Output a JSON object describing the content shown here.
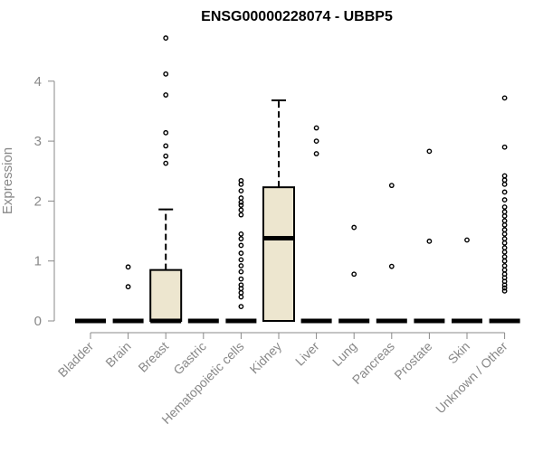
{
  "chart_data": {
    "type": "boxplot",
    "title": "ENSG00000228074 - UBBP5",
    "xlabel": "",
    "ylabel": "Expression",
    "ylim": [
      0,
      4.75
    ],
    "yticks": [
      0,
      1,
      2,
      3,
      4
    ],
    "grid": false,
    "box_fill": "#ede6cf",
    "categories": [
      "Bladder",
      "Brain",
      "Breast",
      "Gastric",
      "Hematopoietic cells",
      "Kidney",
      "Liver",
      "Lung",
      "Pancreas",
      "Prostate",
      "Skin",
      "Unknown / Other"
    ],
    "series": [
      {
        "category": "Bladder",
        "q1": 0,
        "median": 0,
        "q3": 0,
        "whisker_low": 0,
        "whisker_high": 0,
        "outliers": []
      },
      {
        "category": "Brain",
        "q1": 0,
        "median": 0,
        "q3": 0,
        "whisker_low": 0,
        "whisker_high": 0,
        "outliers": [
          0.57,
          0.9
        ]
      },
      {
        "category": "Breast",
        "q1": 0,
        "median": 0,
        "q3": 0.85,
        "whisker_low": 0,
        "whisker_high": 1.86,
        "outliers": [
          2.63,
          2.75,
          2.92,
          3.14,
          3.77,
          4.12,
          4.72
        ]
      },
      {
        "category": "Gastric",
        "q1": 0,
        "median": 0,
        "q3": 0,
        "whisker_low": 0,
        "whisker_high": 0,
        "outliers": []
      },
      {
        "category": "Hematopoietic cells",
        "q1": 0,
        "median": 0,
        "q3": 0,
        "whisker_low": 0,
        "whisker_high": 0,
        "outliers": [
          0.24,
          0.4,
          0.47,
          0.54,
          0.6,
          0.7,
          0.82,
          0.92,
          1.02,
          1.13,
          1.26,
          1.37,
          1.45,
          1.77,
          1.85,
          1.93,
          1.98,
          2.05,
          2.17,
          2.28,
          2.34
        ]
      },
      {
        "category": "Kidney",
        "q1": 0,
        "median": 1.38,
        "q3": 2.23,
        "whisker_low": 0,
        "whisker_high": 3.68,
        "outliers": []
      },
      {
        "category": "Liver",
        "q1": 0,
        "median": 0,
        "q3": 0,
        "whisker_low": 0,
        "whisker_high": 0,
        "outliers": [
          2.79,
          3.0,
          3.22
        ]
      },
      {
        "category": "Lung",
        "q1": 0,
        "median": 0,
        "q3": 0,
        "whisker_low": 0,
        "whisker_high": 0,
        "outliers": [
          0.78,
          1.56
        ]
      },
      {
        "category": "Pancreas",
        "q1": 0,
        "median": 0,
        "q3": 0,
        "whisker_low": 0,
        "whisker_high": 0,
        "outliers": [
          0.91,
          2.26
        ]
      },
      {
        "category": "Prostate",
        "q1": 0,
        "median": 0,
        "q3": 0,
        "whisker_low": 0,
        "whisker_high": 0,
        "outliers": [
          1.33,
          2.83
        ]
      },
      {
        "category": "Skin",
        "q1": 0,
        "median": 0,
        "q3": 0,
        "whisker_low": 0,
        "whisker_high": 0,
        "outliers": [
          1.35
        ]
      },
      {
        "category": "Unknown / Other",
        "q1": 0,
        "median": 0,
        "q3": 0,
        "whisker_low": 0,
        "whisker_high": 0,
        "outliers": [
          0.5,
          0.55,
          0.6,
          0.66,
          0.72,
          0.78,
          0.85,
          0.92,
          1.0,
          1.07,
          1.15,
          1.22,
          1.3,
          1.37,
          1.45,
          1.52,
          1.6,
          1.67,
          1.75,
          1.82,
          1.9,
          2.02,
          2.15,
          2.28,
          2.35,
          2.42,
          2.9,
          3.72
        ]
      }
    ]
  }
}
